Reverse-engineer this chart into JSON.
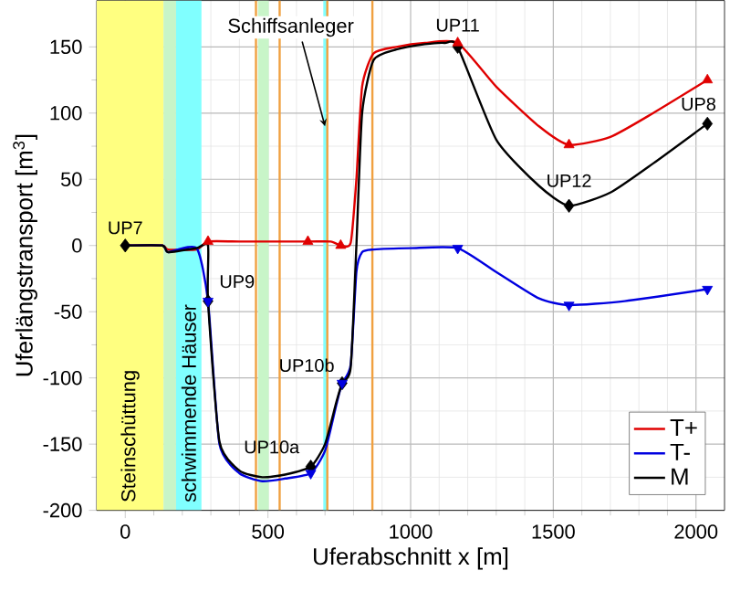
{
  "chart_data": {
    "type": "line",
    "xlabel": "Uferabschnitt x [m]",
    "ylabel": "Uferlängstransport [m$^{3}$]",
    "xlim": [
      -100,
      2100
    ],
    "ylim": [
      -200,
      185
    ],
    "xticks": [
      0,
      500,
      1000,
      1500,
      2000
    ],
    "yticks": [
      -200,
      -150,
      -100,
      -50,
      0,
      50,
      100,
      150
    ],
    "grid": true,
    "legend": "bottom right",
    "line_style": "solid",
    "series": [
      {
        "name": "T+",
        "color": "#e00000",
        "marker": "none",
        "x": [
          0,
          130,
          150,
          250,
          290,
          400,
          640,
          720,
          755,
          790,
          810,
          830,
          870,
          950,
          1050,
          1165,
          1300,
          1450,
          1555,
          1700,
          1850,
          2040
        ],
        "values": [
          0,
          0,
          -3,
          -3,
          3,
          3,
          3,
          3,
          0,
          2,
          50,
          120,
          145,
          150,
          153,
          153,
          120,
          90,
          76,
          82,
          100,
          125
        ]
      },
      {
        "name": "T-",
        "color": "#0000e0",
        "marker": "none",
        "x": [
          0,
          130,
          150,
          250,
          290,
          330,
          400,
          480,
          560,
          650,
          700,
          740,
          760,
          790,
          810,
          830,
          870,
          1000,
          1165,
          1300,
          1450,
          1555,
          1750,
          2040
        ],
        "values": [
          0,
          0,
          -5,
          -2,
          -42,
          -150,
          -172,
          -178,
          -176,
          -172,
          -155,
          -120,
          -104,
          -90,
          -20,
          -5,
          -3,
          -2,
          -2,
          -20,
          -40,
          -45,
          -42,
          -33
        ]
      },
      {
        "name": "M",
        "color": "#000000",
        "marker": "none",
        "x": [
          0,
          130,
          150,
          250,
          290,
          290,
          330,
          400,
          480,
          560,
          650,
          700,
          740,
          760,
          790,
          810,
          830,
          870,
          950,
          1050,
          1120,
          1165,
          1300,
          1450,
          1555,
          1700,
          1850,
          2040
        ],
        "values": [
          0,
          0,
          -5,
          -2,
          0,
          -42,
          -148,
          -170,
          -175,
          -173,
          -167,
          -150,
          -118,
          -104,
          -92,
          0,
          100,
          140,
          148,
          152,
          153,
          150,
          80,
          45,
          30,
          40,
          62,
          92
        ]
      },
      {
        "color": "#000000",
        "type": "scatter",
        "marker": "diamond",
        "x": [
          0,
          290,
          650,
          760,
          1165,
          1555,
          2040
        ],
        "values": [
          0,
          -42,
          -167,
          -104,
          150,
          30,
          92
        ]
      },
      {
        "color": "#e00000",
        "type": "scatter",
        "marker": "triangle",
        "x": [
          290,
          640,
          755,
          1165,
          1555,
          2040
        ],
        "values": [
          3,
          3,
          0,
          153,
          76,
          125
        ]
      },
      {
        "color": "#0000e0",
        "type": "scatter",
        "marker": "triangle down",
        "x": [
          290,
          650,
          760,
          1165,
          1555,
          2040
        ],
        "values": [
          -42,
          -172,
          -104,
          -2,
          -45,
          -33
        ]
      }
    ],
    "bands": [
      {
        "axis": "x",
        "from": -100,
        "to": 134,
        "label": "Steinschüttung",
        "color": "#ffff80"
      },
      {
        "axis": "x",
        "from": 134,
        "to": 178,
        "color": "#c8f5c8"
      },
      {
        "axis": "x",
        "from": 178,
        "to": 267,
        "label": "schwimmende Häuser",
        "color": "#80ffff"
      },
      {
        "axis": "x",
        "from": 465,
        "to": 503,
        "color": "#c8f5c8"
      },
      {
        "axis": "x",
        "from": 694,
        "to": 707,
        "color": "#80ffff"
      }
    ],
    "ref_lines": [
      {
        "axis": "x",
        "value": 458,
        "color": "#f0a040"
      },
      {
        "axis": "x",
        "value": 541,
        "color": "#f0a040"
      },
      {
        "axis": "x",
        "value": 708,
        "color": "#f0a040"
      },
      {
        "axis": "x",
        "value": 866,
        "color": "#f0a040"
      }
    ],
    "annotations": [
      {
        "text": "UP7",
        "x": 0,
        "y": 0
      },
      {
        "text": "UP9",
        "x": 290,
        "y": -42
      },
      {
        "text": "UP10a",
        "x": 650,
        "y": -167
      },
      {
        "text": "UP10b",
        "x": 760,
        "y": -104
      },
      {
        "text": "UP11",
        "x": 1165,
        "y": 153
      },
      {
        "text": "UP12",
        "x": 1555,
        "y": 30
      },
      {
        "text": "UP8",
        "x": 2040,
        "y": 92
      },
      {
        "text": "Schiffsanleger",
        "x": 700,
        "y": 90
      }
    ]
  }
}
